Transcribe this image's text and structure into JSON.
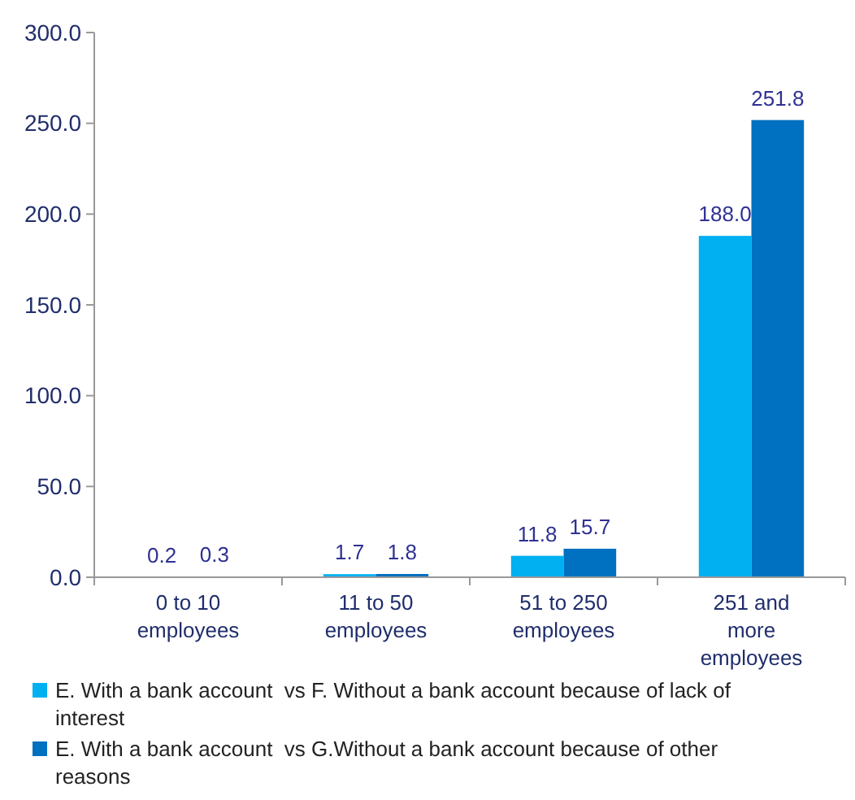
{
  "chart_data": {
    "type": "bar",
    "categories": [
      "0 to 10 employees",
      "11 to 50 employees",
      "51 to 250 employees",
      "251 and more employees"
    ],
    "series": [
      {
        "name": "E. With a bank account  vs F. Without a bank account because of lack of interest",
        "color": "#00b0f0",
        "values": [
          0.2,
          1.7,
          11.8,
          188.0
        ],
        "value_labels": [
          "0.2",
          "1.7",
          "11.8",
          "188.0"
        ]
      },
      {
        "name": "E. With a bank account  vs G.Without a bank account because of other reasons",
        "color": "#0070c0",
        "values": [
          0.3,
          1.8,
          15.7,
          251.8
        ],
        "value_labels": [
          "0.3",
          "1.8",
          "15.7",
          "251.8"
        ]
      }
    ],
    "ylim": [
      0,
      300
    ],
    "yticks": [
      {
        "value": 0,
        "label": "0.0"
      },
      {
        "value": 50,
        "label": "50.0"
      },
      {
        "value": 100,
        "label": "100.0"
      },
      {
        "value": 150,
        "label": "150.0"
      },
      {
        "value": 200,
        "label": "200.0"
      },
      {
        "value": 250,
        "label": "250.0"
      },
      {
        "value": 300,
        "label": "300.0"
      }
    ],
    "grid": false,
    "legend": "bottom"
  }
}
